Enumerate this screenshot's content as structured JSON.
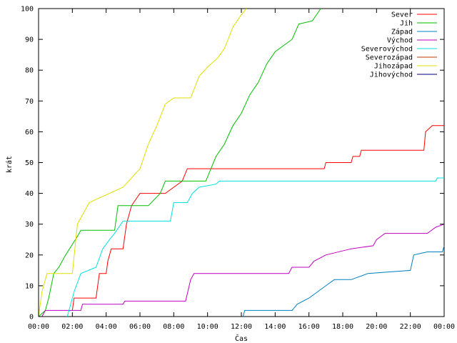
{
  "chart_data": {
    "type": "line",
    "xlabel": "Čas",
    "ylabel": "krát",
    "xlim": [
      0,
      24
    ],
    "ylim": [
      0,
      100
    ],
    "xticks": [
      {
        "value": 0,
        "label": "00:00"
      },
      {
        "value": 2,
        "label": "02:00"
      },
      {
        "value": 4,
        "label": "04:00"
      },
      {
        "value": 6,
        "label": "06:00"
      },
      {
        "value": 8,
        "label": "08:00"
      },
      {
        "value": 10,
        "label": "10:00"
      },
      {
        "value": 12,
        "label": "12:00"
      },
      {
        "value": 14,
        "label": "14:00"
      },
      {
        "value": 16,
        "label": "16:00"
      },
      {
        "value": 18,
        "label": "18:00"
      },
      {
        "value": 20,
        "label": "20:00"
      },
      {
        "value": 22,
        "label": "22:00"
      },
      {
        "value": 24,
        "label": "00:00"
      }
    ],
    "yticks": [
      {
        "value": 0,
        "label": "0"
      },
      {
        "value": 10,
        "label": "10"
      },
      {
        "value": 20,
        "label": "20"
      },
      {
        "value": 30,
        "label": "30"
      },
      {
        "value": 40,
        "label": "40"
      },
      {
        "value": 50,
        "label": "50"
      },
      {
        "value": 60,
        "label": "60"
      },
      {
        "value": 70,
        "label": "70"
      },
      {
        "value": 80,
        "label": "80"
      },
      {
        "value": 90,
        "label": "90"
      },
      {
        "value": 100,
        "label": "100"
      }
    ],
    "grid": false,
    "legend_position": "top-right",
    "series": [
      {
        "name": "Sever",
        "color": "#ff0000",
        "points": [
          [
            2.0,
            2
          ],
          [
            2.1,
            6
          ],
          [
            3.4,
            6
          ],
          [
            3.5,
            10
          ],
          [
            3.6,
            14
          ],
          [
            4.0,
            14
          ],
          [
            4.1,
            18
          ],
          [
            4.3,
            22
          ],
          [
            5.0,
            22
          ],
          [
            5.2,
            30
          ],
          [
            5.5,
            36
          ],
          [
            6.0,
            40
          ],
          [
            7.5,
            40
          ],
          [
            8.5,
            44
          ],
          [
            8.8,
            48
          ],
          [
            16.9,
            48
          ],
          [
            17.0,
            50
          ],
          [
            18.5,
            50
          ],
          [
            18.6,
            52
          ],
          [
            19.0,
            52
          ],
          [
            19.1,
            54
          ],
          [
            22.8,
            54
          ],
          [
            22.9,
            60
          ],
          [
            23.3,
            62
          ],
          [
            24.0,
            62
          ]
        ]
      },
      {
        "name": "Jih",
        "color": "#00c000",
        "points": [
          [
            0.0,
            0
          ],
          [
            0.4,
            2
          ],
          [
            0.6,
            6
          ],
          [
            0.9,
            14
          ],
          [
            1.2,
            16
          ],
          [
            1.6,
            20
          ],
          [
            2.3,
            26
          ],
          [
            2.5,
            28
          ],
          [
            4.5,
            28
          ],
          [
            4.7,
            36
          ],
          [
            6.5,
            36
          ],
          [
            7.2,
            40
          ],
          [
            7.5,
            44
          ],
          [
            9.9,
            44
          ],
          [
            10.2,
            48
          ],
          [
            10.5,
            52
          ],
          [
            11.0,
            56
          ],
          [
            11.5,
            62
          ],
          [
            12.0,
            66
          ],
          [
            12.5,
            72
          ],
          [
            13.0,
            76
          ],
          [
            13.5,
            82
          ],
          [
            14.0,
            86
          ],
          [
            15.0,
            90
          ],
          [
            15.4,
            95
          ],
          [
            16.2,
            96
          ],
          [
            16.7,
            100
          ]
        ]
      },
      {
        "name": "Západ",
        "color": "#0080c0",
        "points": [
          [
            12.1,
            0
          ],
          [
            12.2,
            2
          ],
          [
            15.0,
            2
          ],
          [
            15.3,
            4
          ],
          [
            16.0,
            6
          ],
          [
            17.0,
            10
          ],
          [
            17.5,
            12
          ],
          [
            18.5,
            12
          ],
          [
            19.5,
            14
          ],
          [
            22.0,
            15
          ],
          [
            22.2,
            20
          ],
          [
            23.0,
            21
          ],
          [
            23.9,
            21
          ],
          [
            24.0,
            23
          ]
        ]
      },
      {
        "name": "Východ",
        "color": "#c000c0",
        "points": [
          [
            0.2,
            0
          ],
          [
            0.4,
            2
          ],
          [
            2.5,
            2
          ],
          [
            2.6,
            4
          ],
          [
            5.0,
            4
          ],
          [
            5.1,
            5
          ],
          [
            8.7,
            5
          ],
          [
            9.0,
            12
          ],
          [
            9.2,
            14
          ],
          [
            14.8,
            14
          ],
          [
            15.0,
            16
          ],
          [
            16.0,
            16
          ],
          [
            16.3,
            18
          ],
          [
            17.0,
            20
          ],
          [
            18.5,
            22
          ],
          [
            19.8,
            23
          ],
          [
            20.0,
            25
          ],
          [
            20.5,
            27
          ],
          [
            23.0,
            27
          ],
          [
            23.5,
            29
          ],
          [
            24.0,
            30
          ]
        ]
      },
      {
        "name": "Severovýchod",
        "color": "#00e0e0",
        "points": [
          [
            1.7,
            0
          ],
          [
            1.9,
            4
          ],
          [
            2.1,
            8
          ],
          [
            2.5,
            14
          ],
          [
            3.4,
            16
          ],
          [
            3.8,
            22
          ],
          [
            4.2,
            25
          ],
          [
            4.5,
            27
          ],
          [
            5.0,
            31
          ],
          [
            7.8,
            31
          ],
          [
            8.0,
            37
          ],
          [
            8.8,
            37
          ],
          [
            9.1,
            40
          ],
          [
            9.5,
            42
          ],
          [
            10.5,
            43
          ],
          [
            10.7,
            44
          ],
          [
            23.5,
            44
          ],
          [
            23.6,
            45
          ],
          [
            24.0,
            45
          ]
        ]
      },
      {
        "name": "Severozápad",
        "color": "#c04000",
        "points": []
      },
      {
        "name": "Jihozápad",
        "color": "#e0e000",
        "points": [
          [
            0.0,
            0
          ],
          [
            0.2,
            8
          ],
          [
            0.5,
            14
          ],
          [
            2.0,
            14
          ],
          [
            2.3,
            30
          ],
          [
            3.0,
            37
          ],
          [
            5.0,
            42
          ],
          [
            6.0,
            48
          ],
          [
            6.5,
            56
          ],
          [
            7.0,
            62
          ],
          [
            7.5,
            69
          ],
          [
            8.0,
            71
          ],
          [
            9.0,
            71
          ],
          [
            9.5,
            78
          ],
          [
            10.0,
            81
          ],
          [
            10.6,
            84
          ],
          [
            11.0,
            87
          ],
          [
            11.5,
            94
          ],
          [
            12.0,
            98
          ],
          [
            12.3,
            100
          ]
        ]
      },
      {
        "name": "Jihovýchod",
        "color": "#000080",
        "points": []
      }
    ]
  }
}
